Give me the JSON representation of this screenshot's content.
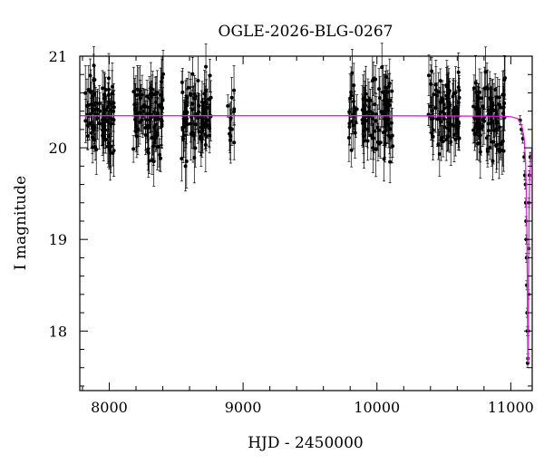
{
  "chart_data": {
    "type": "scatter",
    "title": "OGLE-2026-BLG-0267",
    "xlabel": "HJD - 2450000",
    "ylabel": "I magnitude",
    "xlim": [
      7780,
      11160
    ],
    "ylim": [
      21.0,
      17.35
    ],
    "y_inverted": true,
    "x_ticks": [
      8000,
      9000,
      10000,
      11000
    ],
    "y_ticks": [
      18,
      19,
      20,
      21
    ],
    "x_minor_step": 200,
    "y_minor_step": 0.2,
    "grid": false,
    "legend": "none",
    "colors": {
      "points": "#000000",
      "model": "#dd22dd"
    },
    "observing_seasons": [
      {
        "start": 7820,
        "end": 8040,
        "n": 90
      },
      {
        "start": 8180,
        "end": 8410,
        "n": 95
      },
      {
        "start": 8540,
        "end": 8760,
        "n": 90
      },
      {
        "start": 8880,
        "end": 8935,
        "n": 12
      },
      {
        "start": 9790,
        "end": 9855,
        "n": 20
      },
      {
        "start": 9890,
        "end": 10120,
        "n": 90
      },
      {
        "start": 10380,
        "end": 10620,
        "n": 90
      },
      {
        "start": 10720,
        "end": 10960,
        "n": 90
      }
    ],
    "baseline_mag": 20.35,
    "typical_error_mag": 0.2,
    "event_points": [
      {
        "x": 11070,
        "y": 20.3
      },
      {
        "x": 11080,
        "y": 20.2
      },
      {
        "x": 11090,
        "y": 20.1
      },
      {
        "x": 11100,
        "y": 19.9
      },
      {
        "x": 11105,
        "y": 19.7
      },
      {
        "x": 11110,
        "y": 19.6
      },
      {
        "x": 11112,
        "y": 19.4
      },
      {
        "x": 11114,
        "y": 19.2
      },
      {
        "x": 11116,
        "y": 19.0
      },
      {
        "x": 11118,
        "y": 18.8
      },
      {
        "x": 11120,
        "y": 18.5
      },
      {
        "x": 11122,
        "y": 18.2
      },
      {
        "x": 11124,
        "y": 18.0
      },
      {
        "x": 11126,
        "y": 17.65
      },
      {
        "x": 11128,
        "y": 17.7
      },
      {
        "x": 11130,
        "y": 18.0
      },
      {
        "x": 11132,
        "y": 18.4
      },
      {
        "x": 11134,
        "y": 18.9
      },
      {
        "x": 11136,
        "y": 19.4
      },
      {
        "x": 11140,
        "y": 19.7
      },
      {
        "x": 11145,
        "y": 19.9
      }
    ],
    "model_curve": [
      {
        "x": 7780,
        "y": 20.35
      },
      {
        "x": 9000,
        "y": 20.35
      },
      {
        "x": 10000,
        "y": 20.35
      },
      {
        "x": 10900,
        "y": 20.345
      },
      {
        "x": 11000,
        "y": 20.34
      },
      {
        "x": 11050,
        "y": 20.32
      },
      {
        "x": 11080,
        "y": 20.25
      },
      {
        "x": 11100,
        "y": 20.1
      },
      {
        "x": 11110,
        "y": 19.85
      },
      {
        "x": 11116,
        "y": 19.5
      },
      {
        "x": 11120,
        "y": 19.1
      },
      {
        "x": 11123,
        "y": 18.6
      },
      {
        "x": 11125,
        "y": 18.1
      },
      {
        "x": 11127,
        "y": 17.7
      },
      {
        "x": 11129,
        "y": 17.65
      },
      {
        "x": 11131,
        "y": 18.0
      },
      {
        "x": 11133,
        "y": 18.6
      },
      {
        "x": 11136,
        "y": 19.2
      },
      {
        "x": 11140,
        "y": 19.6
      },
      {
        "x": 11148,
        "y": 19.85
      },
      {
        "x": 11160,
        "y": 20.0
      }
    ]
  }
}
